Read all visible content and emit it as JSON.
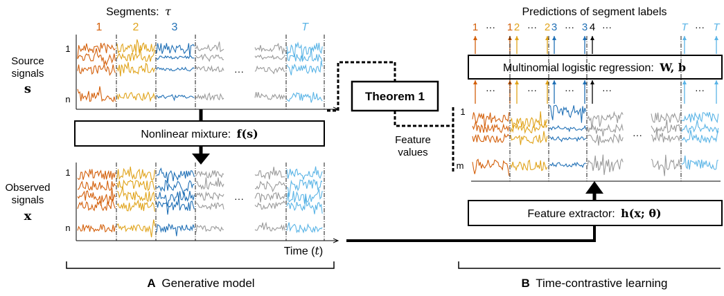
{
  "colors": {
    "seg1": "#d35f0a",
    "seg2": "#e0a31a",
    "seg3": "#1f6fb5",
    "segGray": "#9a9a9a",
    "segT": "#5ab4e6",
    "black": "#000000"
  },
  "panelA": {
    "segments_title": "Segments:",
    "segments_symbol": "τ",
    "segment_labels": [
      "1",
      "2",
      "3",
      "T"
    ],
    "source_label_line1": "Source",
    "source_label_line2": "signals",
    "source_symbol": "s",
    "row_first": "1",
    "row_last": "n",
    "dots": "···",
    "mixture_label": "Nonlinear mixture:",
    "mixture_formula": "f(s)",
    "observed_line1": "Observed",
    "observed_line2": "signals",
    "observed_symbol": "x",
    "time_label": "Time (",
    "time_symbol": "t",
    "time_close": ")",
    "caption_letter": "A",
    "caption_text": "Generative model"
  },
  "theorem": {
    "label": "Theorem 1",
    "feature_line1": "Feature",
    "feature_line2": "values"
  },
  "panelB": {
    "predictions_title": "Predictions of segment labels",
    "prediction_labels": [
      "1",
      "···",
      "1",
      "2",
      "···",
      "2",
      "3",
      "···",
      "3",
      "4",
      "···",
      "T",
      "···",
      "T"
    ],
    "regression_label": "Multinomial logistic regression:",
    "regression_formula": "W, b",
    "row_first": "1",
    "row_last": "m",
    "dots": "···",
    "extractor_label": "Feature extractor:",
    "extractor_formula": "h(x; θ)",
    "caption_letter": "B",
    "caption_text": "Time-contrastive learning"
  }
}
